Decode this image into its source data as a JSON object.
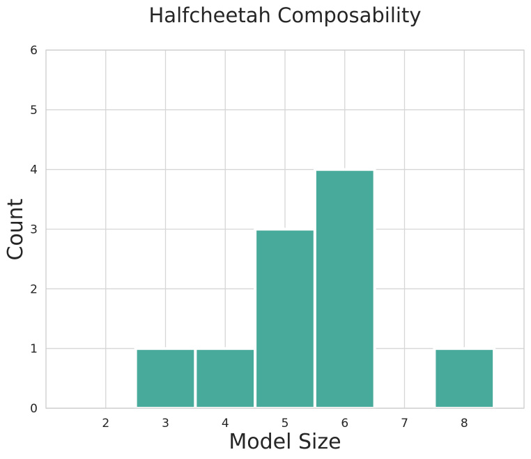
{
  "chart_data": {
    "type": "bar",
    "title": "Halfcheetah Composability",
    "xlabel": "Model Size",
    "ylabel": "Count",
    "categories": [
      "3",
      "4",
      "5",
      "6",
      "8"
    ],
    "x": [
      3,
      4,
      5,
      6,
      8
    ],
    "values": [
      1,
      1,
      3,
      4,
      1
    ],
    "xlim": [
      1,
      9
    ],
    "ylim": [
      0,
      6
    ],
    "xticks": [
      "2",
      "3",
      "4",
      "5",
      "6",
      "7",
      "8"
    ],
    "yticks": [
      "0",
      "1",
      "2",
      "3",
      "4",
      "5",
      "6"
    ],
    "bar_color": "#48aa9a",
    "grid": true
  }
}
